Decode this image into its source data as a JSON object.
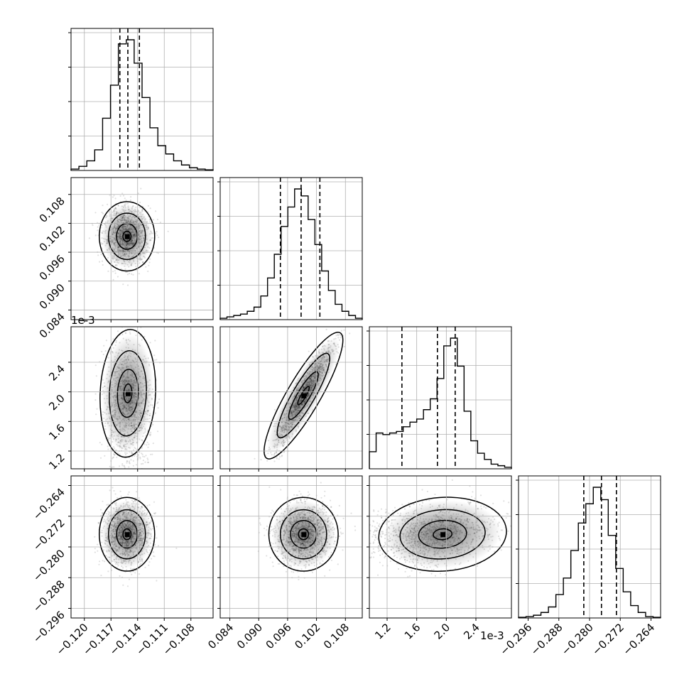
{
  "chart_data": {
    "type": "corner",
    "parameters": 4,
    "grid": true,
    "offset_texts": [
      {
        "axis": "y",
        "panel": "row3-col1",
        "text": "1e-3"
      },
      {
        "axis": "x",
        "panel": "row4-col3",
        "text": "1e-3"
      }
    ],
    "axes": [
      {
        "range": [
          -0.1215,
          -0.1055
        ],
        "ticks": [
          -0.12,
          -0.117,
          -0.114,
          -0.111,
          -0.108
        ],
        "tick_labels": [
          "−0.120",
          "−0.117",
          "−0.114",
          "−0.111",
          "−0.108"
        ]
      },
      {
        "range": [
          0.082,
          0.1115
        ],
        "ticks": [
          0.084,
          0.09,
          0.096,
          0.102,
          0.108
        ],
        "tick_labels": [
          "0.084",
          "0.090",
          "0.096",
          "0.102",
          "0.108"
        ]
      },
      {
        "range": [
          0.96,
          2.88
        ],
        "ticks": [
          1.2,
          1.6,
          2.0,
          2.4
        ],
        "tick_labels": [
          "1.2",
          "1.6",
          "2.0",
          "2.4"
        ]
      },
      {
        "range": [
          -0.2985,
          -0.2615
        ],
        "ticks": [
          -0.296,
          -0.288,
          -0.28,
          -0.272,
          -0.264
        ],
        "tick_labels": [
          "−0.296",
          "−0.288",
          "−0.280",
          "−0.272",
          "−0.264"
        ]
      }
    ],
    "marginals": [
      {
        "parameter": 1,
        "quantiles": [
          -0.116,
          -0.1151,
          -0.1138
        ],
        "histogram": [
          1,
          3,
          7,
          15,
          38,
          62,
          92,
          95,
          78,
          53,
          31,
          18,
          12,
          7,
          4,
          2,
          1,
          0.5
        ]
      },
      {
        "parameter": 2,
        "quantiles": [
          0.0945,
          0.0988,
          0.1027
        ],
        "histogram": [
          1,
          2,
          3,
          4,
          6,
          9,
          17,
          30,
          47,
          67,
          81,
          94,
          89,
          72,
          54,
          35,
          21,
          11,
          6,
          3,
          1
        ]
      },
      {
        "parameter": 3,
        "quantiles": [
          1.4,
          1.88,
          2.12
        ],
        "histogram": [
          11,
          23,
          22,
          23,
          24,
          27,
          30,
          32,
          38,
          45,
          58,
          79,
          84,
          66,
          37,
          18,
          10,
          6,
          3,
          2,
          1
        ]
      },
      {
        "parameter": 4,
        "quantiles": [
          -0.2815,
          -0.2769,
          -0.273
        ],
        "histogram": [
          0.5,
          1,
          2,
          4,
          8,
          17,
          29,
          49,
          69,
          83,
          95,
          86,
          60,
          36,
          19,
          9,
          4,
          1,
          0.5
        ]
      }
    ],
    "joints": [
      {
        "x_param": 1,
        "y_param": 2,
        "center": [
          -0.1152,
          0.0993
        ],
        "spread": [
          0.0013,
          0.003
        ],
        "corr": 0.0,
        "skew": 0
      },
      {
        "x_param": 1,
        "y_param": 3,
        "center": [
          -0.1151,
          1.98
        ],
        "spread": [
          0.0013,
          0.36
        ],
        "corr": -0.05,
        "skew": -0.55
      },
      {
        "x_param": 2,
        "y_param": 3,
        "center": [
          0.0993,
          1.95
        ],
        "spread": [
          0.003,
          0.36
        ],
        "corr": 0.93,
        "skew": 0
      },
      {
        "x_param": 1,
        "y_param": 4,
        "center": [
          -0.1152,
          -0.2767
        ],
        "spread": [
          0.0013,
          0.004
        ],
        "corr": 0.0,
        "skew": 0
      },
      {
        "x_param": 2,
        "y_param": 4,
        "center": [
          0.0993,
          -0.2767
        ],
        "spread": [
          0.003,
          0.004
        ],
        "corr": 0.05,
        "skew": 0
      },
      {
        "x_param": 3,
        "y_param": 4,
        "center": [
          1.95,
          -0.2767
        ],
        "spread": [
          0.36,
          0.004
        ],
        "corr": 0.3,
        "skew": -0.55
      }
    ]
  }
}
